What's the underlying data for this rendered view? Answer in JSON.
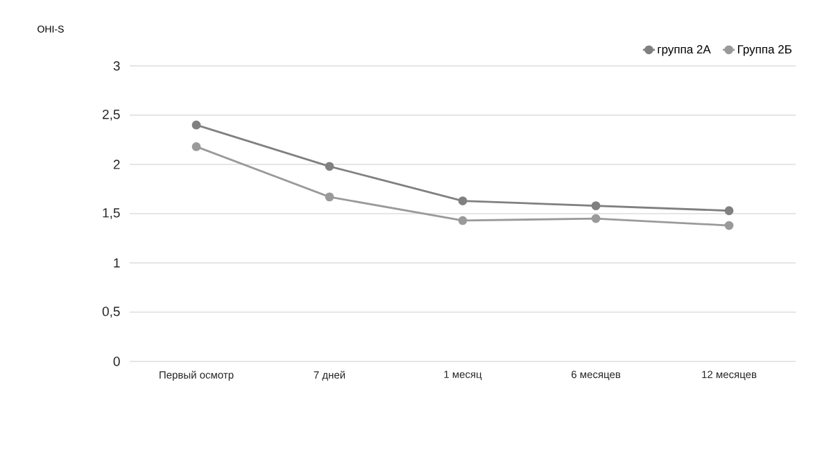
{
  "chart_data": {
    "type": "line",
    "ylabel": "OHI-S",
    "categories": [
      "Первый осмотр",
      "7 дней",
      "1 месяц",
      "6 месяцев",
      "12 месяцев"
    ],
    "series": [
      {
        "name": "группа 2А",
        "color": "#808080",
        "values": [
          2.4,
          1.98,
          1.63,
          1.58,
          1.53
        ]
      },
      {
        "name": "Группа 2Б",
        "color": "#9a9a9a",
        "values": [
          2.18,
          1.67,
          1.43,
          1.45,
          1.38
        ]
      }
    ],
    "ylim": [
      0,
      3
    ],
    "yticks": [
      0,
      {
        "value": 0.5,
        "label": "0,5"
      },
      1,
      {
        "value": 1.5,
        "label": "1,5"
      },
      2,
      {
        "value": 2.5,
        "label": "2,5"
      },
      3
    ],
    "grid": "y",
    "legend": "top right",
    "marker": "circle",
    "line_style": "solid"
  }
}
